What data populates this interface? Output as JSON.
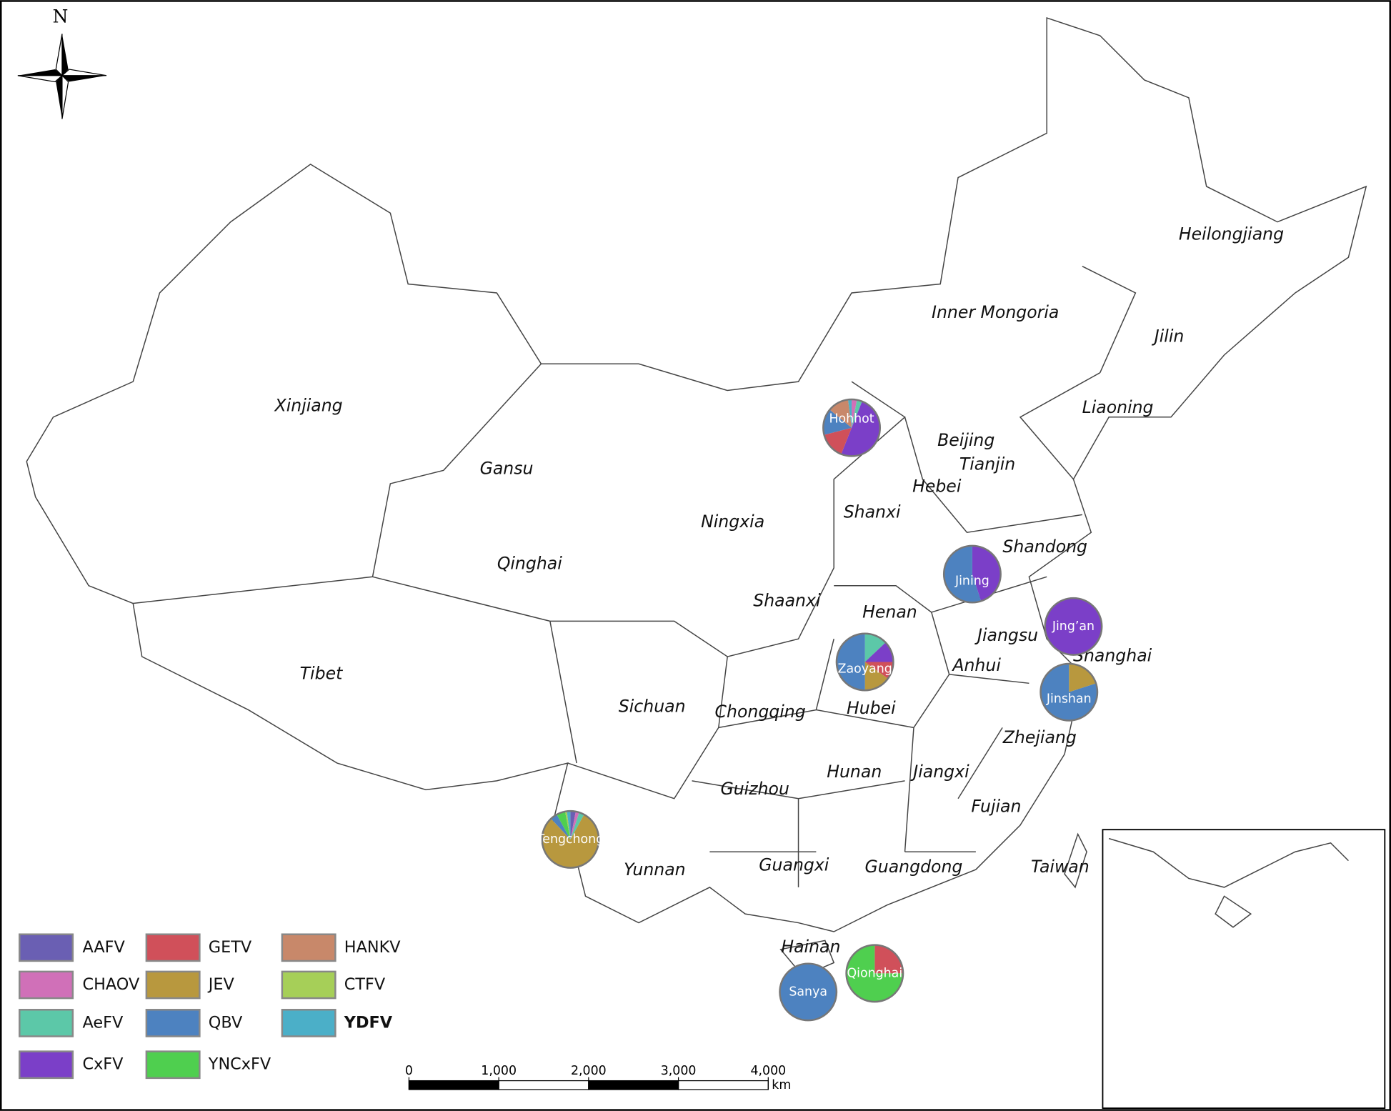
{
  "compass_label": "N",
  "regions": [
    "Heilongjiang",
    "Inner Mongoria",
    "Jilin",
    "Xinjiang",
    "Liaoning",
    "Beijing",
    "Tianjin",
    "Gansu",
    "Hebei",
    "Shanxi",
    "Ningxia",
    "Shandong",
    "Qinghai",
    "Shaanxi",
    "Henan",
    "Jiangsu",
    "Shanghai",
    "Anhui",
    "Tibet",
    "Sichuan",
    "Chongqing",
    "Hubei",
    "Zhejiang",
    "Hunan",
    "Jiangxi",
    "Guizhou",
    "Fujian",
    "Guangxi",
    "Guangdong",
    "Yunnan",
    "Taiwan",
    "Hainan"
  ],
  "legend": [
    {
      "name": "AAFV",
      "color": "#6a5fb3"
    },
    {
      "name": "CHAOV",
      "color": "#d070b8"
    },
    {
      "name": "AeFV",
      "color": "#5cc8a8"
    },
    {
      "name": "CxFV",
      "color": "#7b3fc8"
    },
    {
      "name": "GETV",
      "color": "#d0505a"
    },
    {
      "name": "JEV",
      "color": "#b8983e"
    },
    {
      "name": "QBV",
      "color": "#4d82c0"
    },
    {
      "name": "YNCxFV",
      "color": "#4fcf4f"
    },
    {
      "name": "HANKV",
      "color": "#c8886a"
    },
    {
      "name": "CTFV",
      "color": "#a6cf58"
    },
    {
      "name": "YDFV",
      "color": "#4bafc8"
    }
  ],
  "sites": [
    {
      "name": "Hohhot",
      "values": [
        0,
        3,
        3,
        50,
        15,
        0,
        15,
        0,
        12,
        0,
        2
      ]
    },
    {
      "name": "Jining",
      "values": [
        0,
        0,
        0,
        45,
        0,
        0,
        55,
        0,
        0,
        0,
        0
      ]
    },
    {
      "name": "Jing’an",
      "values": [
        0,
        0,
        0,
        100,
        0,
        0,
        0,
        0,
        0,
        0,
        0
      ]
    },
    {
      "name": "Zaoyang",
      "values": [
        0,
        0,
        13,
        12,
        10,
        15,
        50,
        0,
        0,
        0,
        0
      ]
    },
    {
      "name": "Jinshan",
      "values": [
        0,
        0,
        0,
        0,
        0,
        20,
        80,
        0,
        0,
        0,
        0
      ]
    },
    {
      "name": "Tengchong",
      "values": [
        3,
        2,
        3,
        0,
        0,
        80,
        4,
        5,
        0,
        1,
        2
      ]
    },
    {
      "name": "Sanya",
      "values": [
        0,
        0,
        0,
        0,
        0,
        0,
        100,
        0,
        0,
        0,
        0
      ]
    },
    {
      "name": "Qionghai",
      "values": [
        0,
        0,
        0,
        0,
        25,
        0,
        0,
        75,
        0,
        0,
        0
      ]
    }
  ],
  "scale_bar": {
    "ticks": [
      0,
      {
        "value": 1000,
        "label": "1,000"
      },
      {
        "value": 2000,
        "label": "2,000"
      },
      {
        "value": 3000,
        "label": "3,000"
      },
      {
        "value": 4000,
        "label": "4,000"
      }
    ],
    "unit": "km"
  }
}
